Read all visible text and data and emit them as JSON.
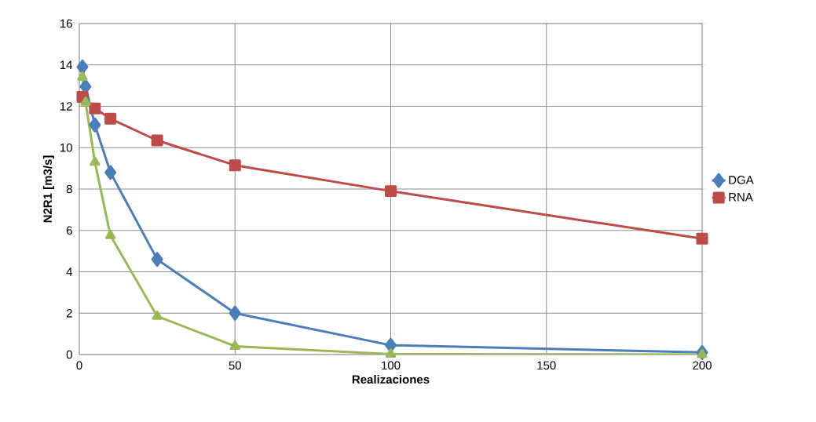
{
  "chart_data": {
    "type": "line",
    "xlabel": "Realizaciones",
    "ylabel": "N2R1 [m3/s]",
    "xlim": [
      0,
      200
    ],
    "xticks": [
      0,
      50,
      100,
      150,
      200
    ],
    "ylim": [
      0,
      16
    ],
    "yticks": [
      0,
      2,
      4,
      6,
      8,
      10,
      12,
      14,
      16
    ],
    "grid": true,
    "legend": "right",
    "line_style": "solid",
    "series": [
      {
        "name": "DGA",
        "color": "#4a7ebb",
        "marker": "diamond",
        "x": [
          1,
          2,
          5,
          10,
          25,
          50,
          100,
          200
        ],
        "values": [
          13.9,
          12.95,
          11.1,
          8.8,
          4.6,
          2.0,
          0.45,
          0.1
        ]
      },
      {
        "name": "RNA",
        "color": "#be4b48",
        "marker": "square",
        "x": [
          1,
          5,
          10,
          25,
          50,
          100,
          200
        ],
        "values": [
          12.45,
          11.9,
          11.4,
          10.35,
          9.15,
          7.9,
          5.6
        ]
      },
      {
        "color": "#98b954",
        "marker": "triangle",
        "x": [
          1,
          2,
          5,
          10,
          25,
          50,
          100,
          200
        ],
        "values": [
          13.4,
          12.2,
          9.3,
          5.75,
          1.85,
          0.4,
          0.02,
          0
        ]
      }
    ]
  }
}
